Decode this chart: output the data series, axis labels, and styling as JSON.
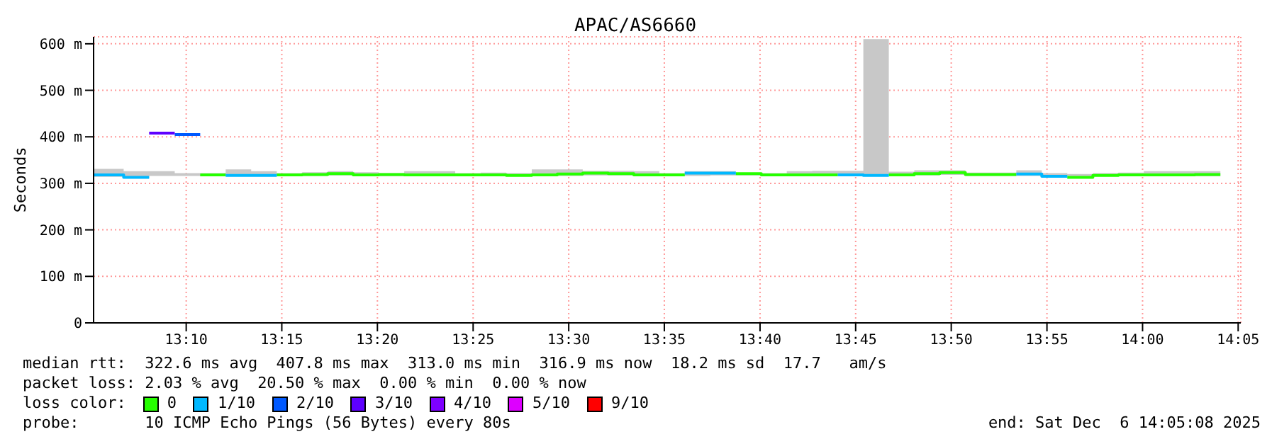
{
  "chart_data": {
    "type": "step",
    "title": "APAC/AS6660",
    "ylabel": "Seconds",
    "legend_title": "loss color:",
    "legend": "bottom",
    "grid": true,
    "xlim": [
      13.086,
      14.0856
    ],
    "xticks": [
      {
        "value": 13.1667,
        "label": "13:10"
      },
      {
        "value": 13.25,
        "label": "13:15"
      },
      {
        "value": 13.3333,
        "label": "13:20"
      },
      {
        "value": 13.4167,
        "label": "13:25"
      },
      {
        "value": 13.5,
        "label": "13:30"
      },
      {
        "value": 13.5833,
        "label": "13:35"
      },
      {
        "value": 13.6667,
        "label": "13:40"
      },
      {
        "value": 13.75,
        "label": "13:45"
      },
      {
        "value": 13.8333,
        "label": "13:50"
      },
      {
        "value": 13.9167,
        "label": "13:55"
      },
      {
        "value": 14.0,
        "label": "14:00"
      },
      {
        "value": 14.0833,
        "label": "14:05"
      }
    ],
    "ylim": [
      0,
      615
    ],
    "yticks": [
      0,
      {
        "value": 100,
        "label": "100 m"
      },
      {
        "value": 200,
        "label": "200 m"
      },
      {
        "value": 300,
        "label": "300 m"
      },
      {
        "value": 400,
        "label": "400 m"
      },
      {
        "value": 500,
        "label": "500 m"
      },
      {
        "value": 600,
        "label": "600 m"
      }
    ],
    "x": [
      13.086,
      13.1122,
      13.1344,
      13.1567,
      13.1789,
      13.2011,
      13.2233,
      13.2456,
      13.2678,
      13.29,
      13.3122,
      13.3344,
      13.3567,
      13.3789,
      13.4011,
      13.4233,
      13.4456,
      13.4678,
      13.49,
      13.5122,
      13.5344,
      13.5567,
      13.5789,
      13.6011,
      13.6233,
      13.6456,
      13.6678,
      13.69,
      13.7122,
      13.7344,
      13.7567,
      13.7789,
      13.8011,
      13.8233,
      13.8456,
      13.8678,
      13.89,
      13.9122,
      13.9344,
      13.9567,
      13.9789,
      14.0011,
      14.0233,
      14.0456,
      14.0678
    ],
    "series": [
      {
        "name": "0",
        "color": "#26ff00",
        "values": [
          null,
          null,
          null,
          null,
          318,
          318,
          null,
          318,
          319,
          321,
          318,
          319,
          318,
          318,
          318,
          318,
          317,
          318,
          320,
          322,
          321,
          318,
          318,
          318,
          null,
          321,
          318,
          318,
          318,
          318,
          null,
          318,
          321,
          323,
          319,
          319,
          319,
          null,
          313,
          317,
          318,
          318,
          318,
          319,
          319
        ],
        "lower": [
          314,
          312,
          316,
          316,
          315,
          315,
          315,
          315,
          316,
          317,
          315,
          315,
          315,
          316,
          315,
          315,
          315,
          315,
          316,
          317,
          317,
          315,
          315,
          316,
          317,
          317,
          315,
          315,
          315,
          315,
          315,
          315,
          317,
          318,
          316,
          316,
          316,
          313,
          312,
          315,
          315,
          315,
          315,
          315,
          315
        ],
        "upper": [
          331,
          326,
          326,
          322,
          322,
          330,
          326,
          322,
          324,
          326,
          324,
          322,
          326,
          326,
          322,
          323,
          322,
          330,
          330,
          327,
          327,
          326,
          322,
          326,
          326,
          322,
          322,
          326,
          327,
          327,
          610,
          325,
          328,
          328,
          323,
          323,
          328,
          322,
          320,
          322,
          323,
          326,
          326,
          326,
          326
        ]
      },
      {
        "name": "1/10",
        "color": "#00b8ff",
        "values": [
          318,
          313,
          313,
          null,
          null,
          317,
          317,
          317,
          null,
          null,
          null,
          null,
          null,
          null,
          null,
          null,
          null,
          null,
          null,
          null,
          null,
          null,
          null,
          322,
          322,
          322,
          null,
          null,
          null,
          318,
          317,
          317,
          null,
          null,
          null,
          null,
          320,
          315,
          315,
          null,
          null,
          null,
          null,
          null,
          null
        ]
      },
      {
        "name": "2/10",
        "color": "#0059ff",
        "values": [
          null,
          null,
          null,
          405,
          405,
          null,
          null,
          null,
          null,
          null,
          null,
          null,
          null,
          null,
          null,
          null,
          null,
          null,
          null,
          null,
          null,
          null,
          null,
          null,
          null,
          null,
          null,
          null,
          null,
          null,
          null,
          null,
          null,
          null,
          null,
          null,
          null,
          null,
          null,
          null,
          null,
          null,
          null,
          null,
          null
        ]
      },
      {
        "name": "3/10",
        "color": "#5e00ff",
        "values": [
          null,
          null,
          408,
          408,
          null,
          null,
          null,
          null,
          null,
          null,
          null,
          null,
          null,
          null,
          null,
          null,
          null,
          null,
          null,
          null,
          null,
          null,
          null,
          null,
          null,
          null,
          null,
          null,
          null,
          null,
          null,
          null,
          null,
          null,
          null,
          null,
          null,
          null,
          null,
          null,
          null,
          null,
          null,
          null,
          null
        ]
      },
      {
        "name": "4/10",
        "color": "#7e00ff",
        "values": [
          null,
          null,
          null,
          null,
          null,
          null,
          null,
          null,
          null,
          null,
          null,
          null,
          null,
          null,
          null,
          null,
          null,
          null,
          null,
          null,
          null,
          null,
          null,
          null,
          null,
          null,
          null,
          null,
          null,
          null,
          null,
          null,
          null,
          null,
          null,
          null,
          null,
          null,
          null,
          null,
          null,
          null,
          null,
          null,
          null
        ]
      },
      {
        "name": "5/10",
        "color": "#dd00ff",
        "values": [
          null,
          null,
          null,
          null,
          null,
          null,
          null,
          null,
          null,
          null,
          null,
          null,
          null,
          null,
          null,
          null,
          null,
          null,
          null,
          null,
          null,
          null,
          null,
          null,
          null,
          null,
          null,
          null,
          null,
          null,
          null,
          null,
          null,
          null,
          null,
          null,
          null,
          null,
          null,
          null,
          null,
          null,
          null,
          null,
          null
        ]
      },
      {
        "name": "9/10",
        "color": "#ff0000",
        "values": [
          null,
          null,
          null,
          null,
          null,
          null,
          null,
          null,
          null,
          null,
          null,
          null,
          null,
          null,
          null,
          null,
          null,
          null,
          null,
          null,
          null,
          null,
          null,
          null,
          null,
          null,
          null,
          null,
          null,
          null,
          null,
          null,
          null,
          null,
          null,
          null,
          null,
          null,
          null,
          null,
          null,
          null,
          null,
          null,
          null
        ]
      }
    ],
    "annotations": [
      "median rtt:  322.6 ms avg  407.8 ms max  313.0 ms min  316.9 ms now  18.2 ms sd  17.7   am/s",
      "packet loss: 2.03 % avg  20.50 % max  0.00 % min  0.00 % now",
      "probe:       10 ICMP Echo Pings (56 Bytes) every 80s",
      "end: Sat Dec  6 14:05:08 2025"
    ]
  }
}
